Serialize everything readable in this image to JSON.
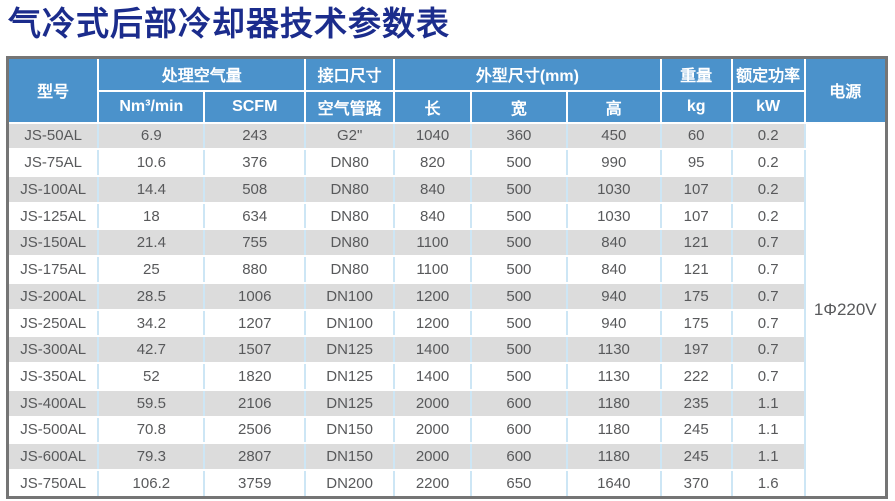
{
  "title": "气冷式后部冷却器技术参数表",
  "table": {
    "header": {
      "model": "型号",
      "air_volume": "处理空气量",
      "nm3min": "Nm³/min",
      "scfm": "SCFM",
      "interface_size": "接口尺寸",
      "air_pipe": "空气管路",
      "dimensions": "外型尺寸(mm)",
      "length": "长",
      "width": "宽",
      "height": "高",
      "weight": "重量",
      "kg": "kg",
      "rated_power": "额定功率",
      "kw": "kW",
      "power_supply": "电源"
    },
    "power_supply_value": "1Φ220V",
    "rows": [
      [
        "JS-50AL",
        "6.9",
        "243",
        "G2\"",
        "1040",
        "360",
        "450",
        "60",
        "0.2"
      ],
      [
        "JS-75AL",
        "10.6",
        "376",
        "DN80",
        "820",
        "500",
        "990",
        "95",
        "0.2"
      ],
      [
        "JS-100AL",
        "14.4",
        "508",
        "DN80",
        "840",
        "500",
        "1030",
        "107",
        "0.2"
      ],
      [
        "JS-125AL",
        "18",
        "634",
        "DN80",
        "840",
        "500",
        "1030",
        "107",
        "0.2"
      ],
      [
        "JS-150AL",
        "21.4",
        "755",
        "DN80",
        "1100",
        "500",
        "840",
        "121",
        "0.7"
      ],
      [
        "JS-175AL",
        "25",
        "880",
        "DN80",
        "1100",
        "500",
        "840",
        "121",
        "0.7"
      ],
      [
        "JS-200AL",
        "28.5",
        "1006",
        "DN100",
        "1200",
        "500",
        "940",
        "175",
        "0.7"
      ],
      [
        "JS-250AL",
        "34.2",
        "1207",
        "DN100",
        "1200",
        "500",
        "940",
        "175",
        "0.7"
      ],
      [
        "JS-300AL",
        "42.7",
        "1507",
        "DN125",
        "1400",
        "500",
        "1130",
        "197",
        "0.7"
      ],
      [
        "JS-350AL",
        "52",
        "1820",
        "DN125",
        "1400",
        "500",
        "1130",
        "222",
        "0.7"
      ],
      [
        "JS-400AL",
        "59.5",
        "2106",
        "DN125",
        "2000",
        "600",
        "1180",
        "235",
        "1.1"
      ],
      [
        "JS-500AL",
        "70.8",
        "2506",
        "DN150",
        "2000",
        "600",
        "1180",
        "245",
        "1.1"
      ],
      [
        "JS-600AL",
        "79.3",
        "2807",
        "DN150",
        "2000",
        "600",
        "1180",
        "245",
        "1.1"
      ],
      [
        "JS-750AL",
        "106.2",
        "3759",
        "DN200",
        "2200",
        "650",
        "1640",
        "370",
        "1.6"
      ]
    ],
    "colors": {
      "header_bg": "#4b92cb",
      "title_text": "#1b2c8c",
      "stripe_bg": "#dcdcdc",
      "data_text": "#58595b",
      "grid_vertical": "#cde6f5",
      "outer_border": "#757575"
    }
  }
}
